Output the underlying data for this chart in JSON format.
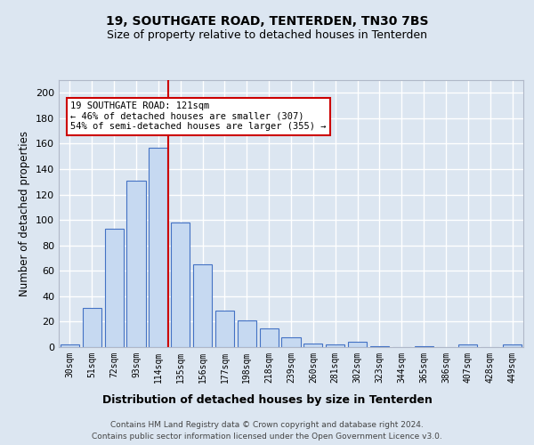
{
  "title1": "19, SOUTHGATE ROAD, TENTERDEN, TN30 7BS",
  "title2": "Size of property relative to detached houses in Tenterden",
  "xlabel": "Distribution of detached houses by size in Tenterden",
  "ylabel": "Number of detached properties",
  "categories": [
    "30sqm",
    "51sqm",
    "72sqm",
    "93sqm",
    "114sqm",
    "135sqm",
    "156sqm",
    "177sqm",
    "198sqm",
    "218sqm",
    "239sqm",
    "260sqm",
    "281sqm",
    "302sqm",
    "323sqm",
    "344sqm",
    "365sqm",
    "386sqm",
    "407sqm",
    "428sqm",
    "449sqm"
  ],
  "values": [
    2,
    31,
    93,
    131,
    157,
    98,
    65,
    29,
    21,
    15,
    8,
    3,
    2,
    4,
    1,
    0,
    1,
    0,
    2,
    0,
    2
  ],
  "bar_color": "#c6d9f1",
  "bar_edge_color": "#4472c4",
  "background_color": "#dce6f1",
  "grid_color": "#ffffff",
  "annotation_line1": "19 SOUTHGATE ROAD: 121sqm",
  "annotation_line2": "← 46% of detached houses are smaller (307)",
  "annotation_line3": "54% of semi-detached houses are larger (355) →",
  "annotation_box_color": "#ffffff",
  "annotation_box_edge_color": "#cc0000",
  "vline_color": "#cc0000",
  "ylim": [
    0,
    210
  ],
  "yticks": [
    0,
    20,
    40,
    60,
    80,
    100,
    120,
    140,
    160,
    180,
    200
  ],
  "footnote1": "Contains HM Land Registry data © Crown copyright and database right 2024.",
  "footnote2": "Contains public sector information licensed under the Open Government Licence v3.0."
}
